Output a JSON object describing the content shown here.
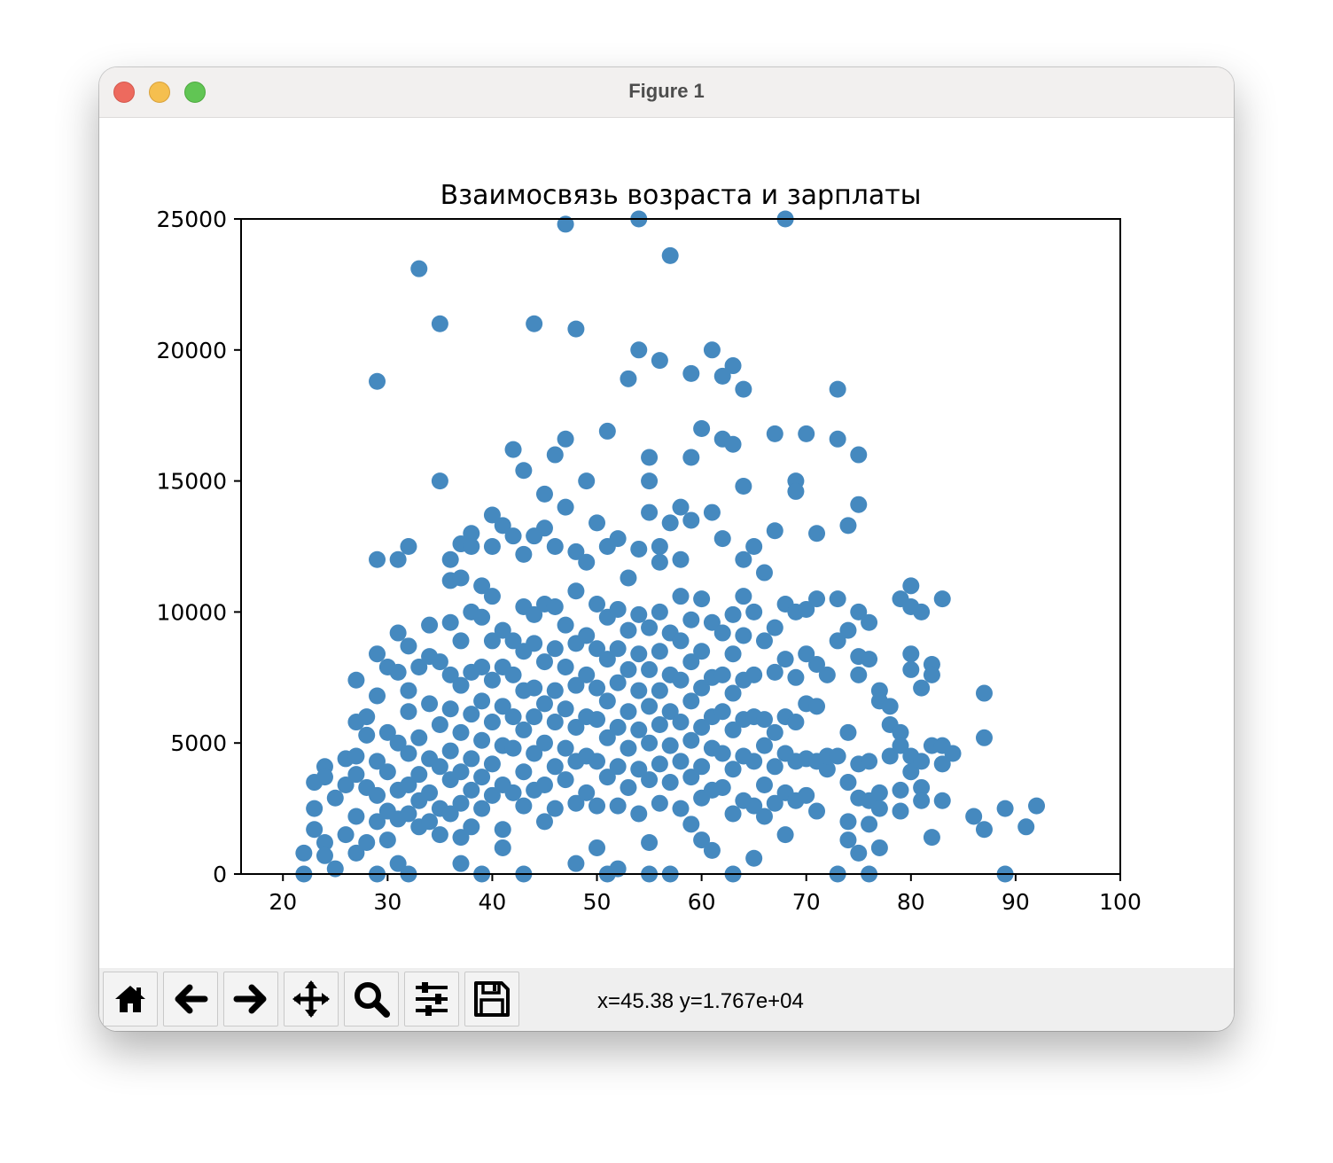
{
  "window": {
    "title": "Figure 1"
  },
  "toolbar": {
    "buttons": [
      {
        "name": "home-button",
        "icon": "home-icon"
      },
      {
        "name": "back-button",
        "icon": "arrow-left-icon"
      },
      {
        "name": "forward-button",
        "icon": "arrow-right-icon"
      },
      {
        "name": "pan-button",
        "icon": "move-icon"
      },
      {
        "name": "zoom-button",
        "icon": "magnifier-icon"
      },
      {
        "name": "configure-subplots-button",
        "icon": "sliders-icon"
      },
      {
        "name": "save-button",
        "icon": "floppy-disk-icon"
      }
    ],
    "coords": "x=45.38 y=1.767e+04"
  },
  "colors": {
    "marker": "#4589bf",
    "traffic_close": "#ed6a5e",
    "traffic_min": "#f5bf4f",
    "traffic_max": "#61c554"
  },
  "chart_data": {
    "type": "scatter",
    "title": "Взаимосвязь возраста и зарплаты",
    "xlabel": "",
    "ylabel": "",
    "xlim": [
      16,
      100
    ],
    "ylim": [
      0,
      25000
    ],
    "xticks": [
      20,
      30,
      40,
      50,
      60,
      70,
      80,
      90,
      100
    ],
    "yticks": [
      0,
      5000,
      10000,
      15000,
      20000,
      25000
    ],
    "grid": false,
    "points": [
      [
        22,
        800
      ],
      [
        22,
        0
      ],
      [
        23,
        3500
      ],
      [
        23,
        2500
      ],
      [
        23,
        1700
      ],
      [
        24,
        4100
      ],
      [
        24,
        3700
      ],
      [
        24,
        1200
      ],
      [
        24,
        700
      ],
      [
        25,
        2900
      ],
      [
        25,
        200
      ],
      [
        26,
        4400
      ],
      [
        26,
        3400
      ],
      [
        26,
        1500
      ],
      [
        27,
        7400
      ],
      [
        27,
        5800
      ],
      [
        27,
        4500
      ],
      [
        27,
        3800
      ],
      [
        27,
        2200
      ],
      [
        27,
        800
      ],
      [
        28,
        6000
      ],
      [
        28,
        5300
      ],
      [
        28,
        3300
      ],
      [
        28,
        1200
      ],
      [
        29,
        8400
      ],
      [
        29,
        6800
      ],
      [
        29,
        4300
      ],
      [
        29,
        3000
      ],
      [
        29,
        2000
      ],
      [
        29,
        12000
      ],
      [
        29,
        18800
      ],
      [
        29,
        0
      ],
      [
        30,
        7900
      ],
      [
        30,
        5400
      ],
      [
        30,
        3900
      ],
      [
        30,
        2400
      ],
      [
        30,
        1300
      ],
      [
        31,
        9200
      ],
      [
        31,
        7700
      ],
      [
        31,
        5000
      ],
      [
        31,
        3200
      ],
      [
        31,
        2100
      ],
      [
        31,
        12000
      ],
      [
        31,
        400
      ],
      [
        32,
        8700
      ],
      [
        32,
        7000
      ],
      [
        32,
        6200
      ],
      [
        32,
        4600
      ],
      [
        32,
        3400
      ],
      [
        32,
        2300
      ],
      [
        32,
        12500
      ],
      [
        32,
        0
      ],
      [
        33,
        7900
      ],
      [
        33,
        5200
      ],
      [
        33,
        3800
      ],
      [
        33,
        2800
      ],
      [
        33,
        1800
      ],
      [
        33,
        23100
      ],
      [
        34,
        9500
      ],
      [
        34,
        8300
      ],
      [
        34,
        6500
      ],
      [
        34,
        4400
      ],
      [
        34,
        3100
      ],
      [
        34,
        2000
      ],
      [
        35,
        8100
      ],
      [
        35,
        5700
      ],
      [
        35,
        4100
      ],
      [
        35,
        2500
      ],
      [
        35,
        1500
      ],
      [
        35,
        15000
      ],
      [
        35,
        21000
      ],
      [
        36,
        9600
      ],
      [
        36,
        7600
      ],
      [
        36,
        6300
      ],
      [
        36,
        4700
      ],
      [
        36,
        3600
      ],
      [
        36,
        2300
      ],
      [
        36,
        11200
      ],
      [
        36,
        12000
      ],
      [
        37,
        8900
      ],
      [
        37,
        7200
      ],
      [
        37,
        5400
      ],
      [
        37,
        3900
      ],
      [
        37,
        2700
      ],
      [
        37,
        1400
      ],
      [
        37,
        11300
      ],
      [
        37,
        12600
      ],
      [
        37,
        400
      ],
      [
        38,
        10000
      ],
      [
        38,
        7700
      ],
      [
        38,
        6100
      ],
      [
        38,
        4400
      ],
      [
        38,
        3200
      ],
      [
        38,
        1800
      ],
      [
        38,
        13000
      ],
      [
        38,
        12500
      ],
      [
        39,
        9800
      ],
      [
        39,
        7900
      ],
      [
        39,
        6600
      ],
      [
        39,
        5100
      ],
      [
        39,
        3700
      ],
      [
        39,
        2500
      ],
      [
        39,
        11000
      ],
      [
        39,
        0
      ],
      [
        40,
        10600
      ],
      [
        40,
        8900
      ],
      [
        40,
        7400
      ],
      [
        40,
        5800
      ],
      [
        40,
        4200
      ],
      [
        40,
        3000
      ],
      [
        40,
        13700
      ],
      [
        40,
        12500
      ],
      [
        41,
        9300
      ],
      [
        41,
        7900
      ],
      [
        41,
        6400
      ],
      [
        41,
        4900
      ],
      [
        41,
        3400
      ],
      [
        41,
        1700
      ],
      [
        41,
        13300
      ],
      [
        41,
        1000
      ],
      [
        42,
        8900
      ],
      [
        42,
        7600
      ],
      [
        42,
        6000
      ],
      [
        42,
        4800
      ],
      [
        42,
        3100
      ],
      [
        42,
        16200
      ],
      [
        42,
        12900
      ],
      [
        43,
        10200
      ],
      [
        43,
        8500
      ],
      [
        43,
        7000
      ],
      [
        43,
        5500
      ],
      [
        43,
        3900
      ],
      [
        43,
        2600
      ],
      [
        43,
        12200
      ],
      [
        43,
        15400
      ],
      [
        43,
        0
      ],
      [
        44,
        9900
      ],
      [
        44,
        8800
      ],
      [
        44,
        7100
      ],
      [
        44,
        6000
      ],
      [
        44,
        4600
      ],
      [
        44,
        3200
      ],
      [
        44,
        12900
      ],
      [
        44,
        21000
      ],
      [
        45,
        10300
      ],
      [
        45,
        8100
      ],
      [
        45,
        6500
      ],
      [
        45,
        5000
      ],
      [
        45,
        3400
      ],
      [
        45,
        2000
      ],
      [
        45,
        14500
      ],
      [
        45,
        13200
      ],
      [
        46,
        10200
      ],
      [
        46,
        8600
      ],
      [
        46,
        7000
      ],
      [
        46,
        5800
      ],
      [
        46,
        4100
      ],
      [
        46,
        2500
      ],
      [
        46,
        16000
      ],
      [
        46,
        12500
      ],
      [
        47,
        9500
      ],
      [
        47,
        7900
      ],
      [
        47,
        6300
      ],
      [
        47,
        4800
      ],
      [
        47,
        3600
      ],
      [
        47,
        14000
      ],
      [
        47,
        16600
      ],
      [
        47,
        24800
      ],
      [
        48,
        10800
      ],
      [
        48,
        8800
      ],
      [
        48,
        7200
      ],
      [
        48,
        5600
      ],
      [
        48,
        4300
      ],
      [
        48,
        2700
      ],
      [
        48,
        12300
      ],
      [
        48,
        20800
      ],
      [
        48,
        400
      ],
      [
        49,
        9100
      ],
      [
        49,
        7600
      ],
      [
        49,
        6000
      ],
      [
        49,
        4500
      ],
      [
        49,
        3100
      ],
      [
        49,
        15000
      ],
      [
        49,
        11900
      ],
      [
        50,
        10300
      ],
      [
        50,
        8600
      ],
      [
        50,
        7100
      ],
      [
        50,
        5900
      ],
      [
        50,
        4300
      ],
      [
        50,
        2600
      ],
      [
        50,
        13400
      ],
      [
        50,
        1000
      ],
      [
        51,
        9800
      ],
      [
        51,
        8200
      ],
      [
        51,
        6600
      ],
      [
        51,
        5200
      ],
      [
        51,
        3700
      ],
      [
        51,
        16900
      ],
      [
        51,
        12500
      ],
      [
        51,
        0
      ],
      [
        52,
        10100
      ],
      [
        52,
        8600
      ],
      [
        52,
        7300
      ],
      [
        52,
        5600
      ],
      [
        52,
        4100
      ],
      [
        52,
        2600
      ],
      [
        52,
        12800
      ],
      [
        52,
        200
      ],
      [
        53,
        9300
      ],
      [
        53,
        7800
      ],
      [
        53,
        6200
      ],
      [
        53,
        4800
      ],
      [
        53,
        3300
      ],
      [
        53,
        18900
      ],
      [
        53,
        11300
      ],
      [
        54,
        9900
      ],
      [
        54,
        8400
      ],
      [
        54,
        7000
      ],
      [
        54,
        5500
      ],
      [
        54,
        4000
      ],
      [
        54,
        2300
      ],
      [
        54,
        12400
      ],
      [
        54,
        20000
      ],
      [
        54,
        25000
      ],
      [
        55,
        9400
      ],
      [
        55,
        7800
      ],
      [
        55,
        6400
      ],
      [
        55,
        5000
      ],
      [
        55,
        3600
      ],
      [
        55,
        1200
      ],
      [
        55,
        15900
      ],
      [
        55,
        15000
      ],
      [
        55,
        13800
      ],
      [
        55,
        0
      ],
      [
        56,
        10000
      ],
      [
        56,
        8500
      ],
      [
        56,
        7000
      ],
      [
        56,
        5700
      ],
      [
        56,
        4200
      ],
      [
        56,
        2700
      ],
      [
        56,
        19600
      ],
      [
        56,
        11900
      ],
      [
        56,
        12500
      ],
      [
        57,
        9200
      ],
      [
        57,
        7600
      ],
      [
        57,
        6200
      ],
      [
        57,
        4900
      ],
      [
        57,
        3500
      ],
      [
        57,
        13400
      ],
      [
        57,
        23600
      ],
      [
        57,
        0
      ],
      [
        58,
        10600
      ],
      [
        58,
        8900
      ],
      [
        58,
        7400
      ],
      [
        58,
        5800
      ],
      [
        58,
        4300
      ],
      [
        58,
        2500
      ],
      [
        58,
        14000
      ],
      [
        58,
        12000
      ],
      [
        59,
        9700
      ],
      [
        59,
        8100
      ],
      [
        59,
        6600
      ],
      [
        59,
        5100
      ],
      [
        59,
        3700
      ],
      [
        59,
        1900
      ],
      [
        59,
        15900
      ],
      [
        59,
        19100
      ],
      [
        59,
        13500
      ],
      [
        60,
        10500
      ],
      [
        60,
        8500
      ],
      [
        60,
        7100
      ],
      [
        60,
        5600
      ],
      [
        60,
        4100
      ],
      [
        60,
        2900
      ],
      [
        60,
        17000
      ],
      [
        60,
        1300
      ],
      [
        61,
        9600
      ],
      [
        61,
        7500
      ],
      [
        61,
        6000
      ],
      [
        61,
        4800
      ],
      [
        61,
        3200
      ],
      [
        61,
        13800
      ],
      [
        61,
        20000
      ],
      [
        61,
        900
      ],
      [
        62,
        9200
      ],
      [
        62,
        7600
      ],
      [
        62,
        6200
      ],
      [
        62,
        4600
      ],
      [
        62,
        3300
      ],
      [
        62,
        16600
      ],
      [
        62,
        19000
      ],
      [
        62,
        12800
      ],
      [
        63,
        9900
      ],
      [
        63,
        8400
      ],
      [
        63,
        6900
      ],
      [
        63,
        5500
      ],
      [
        63,
        4000
      ],
      [
        63,
        2300
      ],
      [
        63,
        16400
      ],
      [
        63,
        19400
      ],
      [
        63,
        0
      ],
      [
        64,
        10600
      ],
      [
        64,
        9100
      ],
      [
        64,
        7400
      ],
      [
        64,
        5900
      ],
      [
        64,
        4500
      ],
      [
        64,
        2800
      ],
      [
        64,
        14800
      ],
      [
        64,
        18500
      ],
      [
        64,
        12000
      ],
      [
        65,
        10000
      ],
      [
        65,
        7600
      ],
      [
        65,
        6000
      ],
      [
        65,
        4300
      ],
      [
        65,
        2600
      ],
      [
        65,
        12500
      ],
      [
        65,
        600
      ],
      [
        66,
        8900
      ],
      [
        66,
        5900
      ],
      [
        66,
        4900
      ],
      [
        66,
        3400
      ],
      [
        66,
        2200
      ],
      [
        66,
        11500
      ],
      [
        67,
        9400
      ],
      [
        67,
        7700
      ],
      [
        67,
        5400
      ],
      [
        67,
        4100
      ],
      [
        67,
        2700
      ],
      [
        67,
        16800
      ],
      [
        67,
        13100
      ],
      [
        68,
        10300
      ],
      [
        68,
        8200
      ],
      [
        68,
        6000
      ],
      [
        68,
        4600
      ],
      [
        68,
        3100
      ],
      [
        68,
        1500
      ],
      [
        68,
        25000
      ],
      [
        69,
        10000
      ],
      [
        69,
        7500
      ],
      [
        69,
        5800
      ],
      [
        69,
        4300
      ],
      [
        69,
        2800
      ],
      [
        69,
        15000
      ],
      [
        69,
        14600
      ],
      [
        70,
        10100
      ],
      [
        70,
        8400
      ],
      [
        70,
        6500
      ],
      [
        70,
        4400
      ],
      [
        70,
        3000
      ],
      [
        70,
        16800
      ],
      [
        71,
        10500
      ],
      [
        71,
        8000
      ],
      [
        71,
        6400
      ],
      [
        71,
        4300
      ],
      [
        71,
        2400
      ],
      [
        71,
        13000
      ],
      [
        72,
        7600
      ],
      [
        72,
        4000
      ],
      [
        72,
        4500
      ],
      [
        73,
        10500
      ],
      [
        73,
        8900
      ],
      [
        73,
        4500
      ],
      [
        73,
        18500
      ],
      [
        73,
        16600
      ],
      [
        73,
        0
      ],
      [
        74,
        9300
      ],
      [
        74,
        5400
      ],
      [
        74,
        3500
      ],
      [
        74,
        2000
      ],
      [
        74,
        1300
      ],
      [
        74,
        13300
      ],
      [
        75,
        10000
      ],
      [
        75,
        8300
      ],
      [
        75,
        7600
      ],
      [
        75,
        4200
      ],
      [
        75,
        2900
      ],
      [
        75,
        800
      ],
      [
        75,
        14100
      ],
      [
        75,
        16000
      ],
      [
        76,
        9600
      ],
      [
        76,
        8200
      ],
      [
        76,
        4300
      ],
      [
        76,
        2800
      ],
      [
        76,
        1900
      ],
      [
        76,
        0
      ],
      [
        77,
        7000
      ],
      [
        77,
        6600
      ],
      [
        77,
        3100
      ],
      [
        77,
        2500
      ],
      [
        77,
        1000
      ],
      [
        78,
        6400
      ],
      [
        78,
        5700
      ],
      [
        78,
        4500
      ],
      [
        79,
        10500
      ],
      [
        79,
        5400
      ],
      [
        79,
        4900
      ],
      [
        79,
        3200
      ],
      [
        79,
        2400
      ],
      [
        80,
        11000
      ],
      [
        80,
        10200
      ],
      [
        80,
        8400
      ],
      [
        80,
        7800
      ],
      [
        80,
        4500
      ],
      [
        80,
        3900
      ],
      [
        81,
        10000
      ],
      [
        81,
        7100
      ],
      [
        81,
        4300
      ],
      [
        81,
        3300
      ],
      [
        81,
        2800
      ],
      [
        82,
        8000
      ],
      [
        82,
        7600
      ],
      [
        82,
        4900
      ],
      [
        82,
        1400
      ],
      [
        83,
        10500
      ],
      [
        83,
        4900
      ],
      [
        83,
        4200
      ],
      [
        83,
        2800
      ],
      [
        84,
        4600
      ],
      [
        86,
        2200
      ],
      [
        87,
        6900
      ],
      [
        87,
        5200
      ],
      [
        87,
        1700
      ],
      [
        89,
        2500
      ],
      [
        89,
        0
      ],
      [
        91,
        1800
      ],
      [
        92,
        2600
      ]
    ]
  }
}
